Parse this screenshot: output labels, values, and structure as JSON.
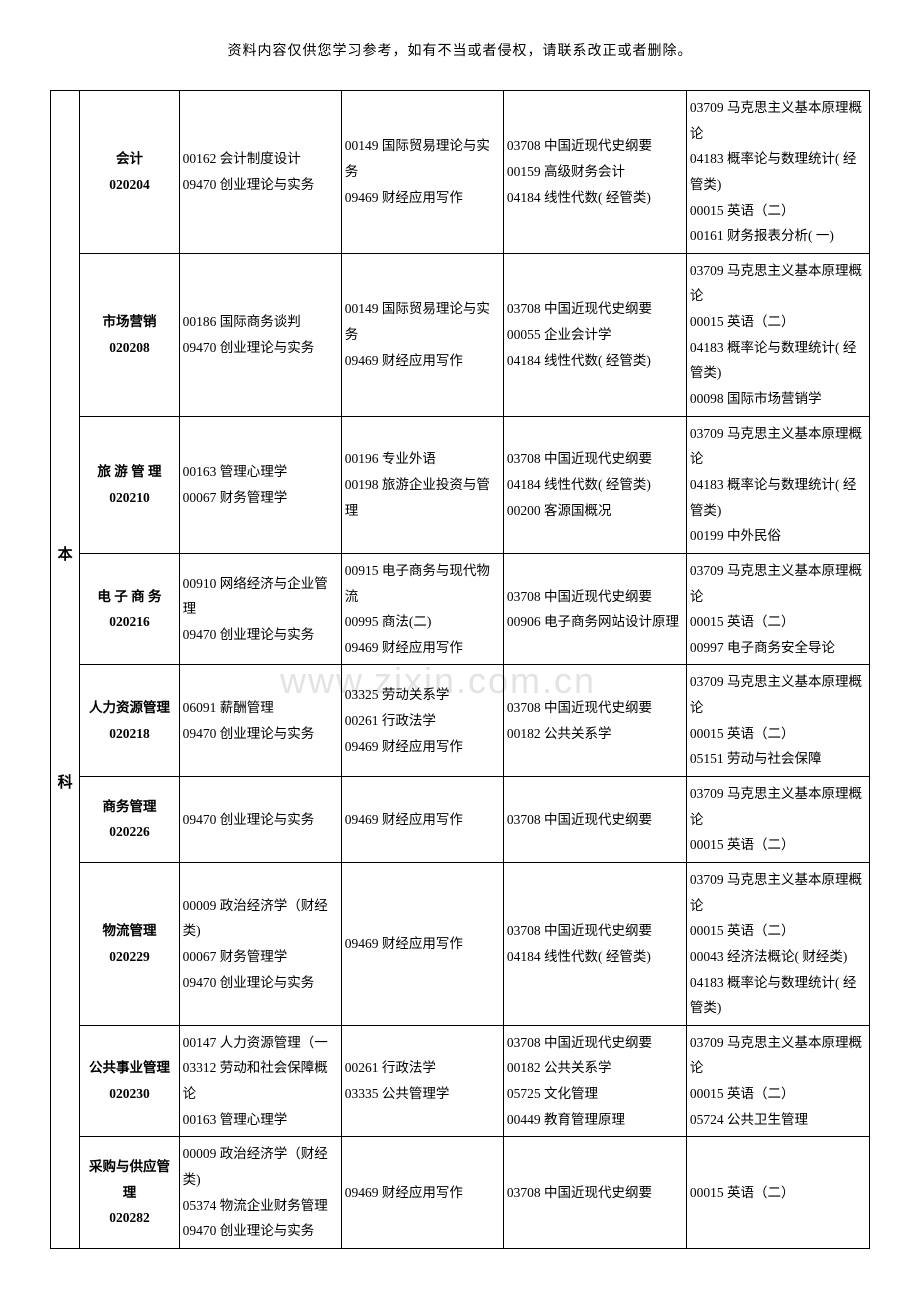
{
  "header_note": "资料内容仅供您学习参考，如有不当或者侵权，请联系改正或者删除。",
  "watermark": "www.zixin.com.cn",
  "level_label_1": "本",
  "level_label_2": "科",
  "rows": [
    {
      "major_name": "会计",
      "major_code": "020204",
      "spaced": false,
      "c2": "00162 会计制度设计\n09470 创业理论与实务",
      "c3": "00149 国际贸易理论与实务\n09469 财经应用写作",
      "c4": "03708 中国近现代史纲要\n00159 高级财务会计\n04184 线性代数( 经管类)",
      "c5": "03709 马克思主义基本原理概论\n04183 概率论与数理统计( 经管类)\n00015 英语（二）\n00161 财务报表分析( 一)"
    },
    {
      "major_name": "市场营销",
      "major_code": "020208",
      "spaced": false,
      "c2": "00186 国际商务谈判\n09470 创业理论与实务",
      "c3": "00149 国际贸易理论与实务\n09469 财经应用写作",
      "c4": "03708 中国近现代史纲要\n00055 企业会计学\n04184 线性代数( 经管类)",
      "c5": "03709 马克思主义基本原理概论\n00015 英语（二）\n04183 概率论与数理统计( 经管类)\n00098 国际市场营销学"
    },
    {
      "major_name": "旅 游 管 理",
      "major_code": "020210",
      "spaced": false,
      "c2": "00163 管理心理学\n00067 财务管理学",
      "c3": "00196 专业外语\n00198 旅游企业投资与管理",
      "c4": "03708 中国近现代史纲要\n04184 线性代数( 经管类)\n00200 客源国概况",
      "c5": "03709 马克思主义基本原理概论\n04183 概率论与数理统计( 经管类)\n00199 中外民俗"
    },
    {
      "major_name": "电 子 商 务",
      "major_code": "020216",
      "spaced": false,
      "c2": "00910 网络经济与企业管理\n09470 创业理论与实务",
      "c3": "00915 电子商务与现代物流\n00995 商法(二)\n09469 财经应用写作",
      "c4": "03708 中国近现代史纲要\n00906 电子商务网站设计原理",
      "c5": "03709 马克思主义基本原理概论\n00015 英语（二）\n00997 电子商务安全导论"
    },
    {
      "major_name": "人力资源管理",
      "major_code": "020218",
      "spaced": false,
      "c2": "06091 薪酬管理\n09470 创业理论与实务",
      "c3": "03325 劳动关系学\n00261 行政法学\n09469 财经应用写作",
      "c4": "03708 中国近现代史纲要\n00182 公共关系学",
      "c5": "03709 马克思主义基本原理概论\n00015 英语（二）\n05151 劳动与社会保障"
    },
    {
      "major_name": "商务管理",
      "major_code": "020226",
      "spaced": false,
      "c2": "09470 创业理论与实务",
      "c3": "09469 财经应用写作",
      "c4": "03708 中国近现代史纲要",
      "c5": "03709 马克思主义基本原理概论\n00015 英语（二）"
    },
    {
      "major_name": "物流管理",
      "major_code": "020229",
      "spaced": false,
      "c2": "00009 政治经济学（财经类)\n00067 财务管理学\n09470 创业理论与实务",
      "c3": "09469 财经应用写作",
      "c4": "03708 中国近现代史纲要\n04184 线性代数( 经管类)",
      "c5": "03709 马克思主义基本原理概论\n00015 英语（二）\n00043 经济法概论( 财经类)\n04183 概率论与数理统计( 经管类)"
    },
    {
      "major_name": "公共事业管理",
      "major_code": "020230",
      "spaced": false,
      "c2": "00147 人力资源管理（一\n03312 劳动和社会保障概论\n00163 管理心理学",
      "c3": "00261 行政法学\n03335 公共管理学",
      "c4": "03708 中国近现代史纲要\n00182 公共关系学\n05725 文化管理\n00449 教育管理原理",
      "c5": "03709 马克思主义基本原理概论\n00015 英语（二）\n05724 公共卫生管理"
    },
    {
      "major_name": "采购与供应管理",
      "major_code": "020282",
      "spaced": false,
      "c2": "00009 政治经济学（财经类)\n05374 物流企业财务管理\n09470 创业理论与实务",
      "c3": "09469 财经应用写作",
      "c4": "03708 中国近现代史纲要",
      "c5": "00015 英语（二）"
    }
  ]
}
